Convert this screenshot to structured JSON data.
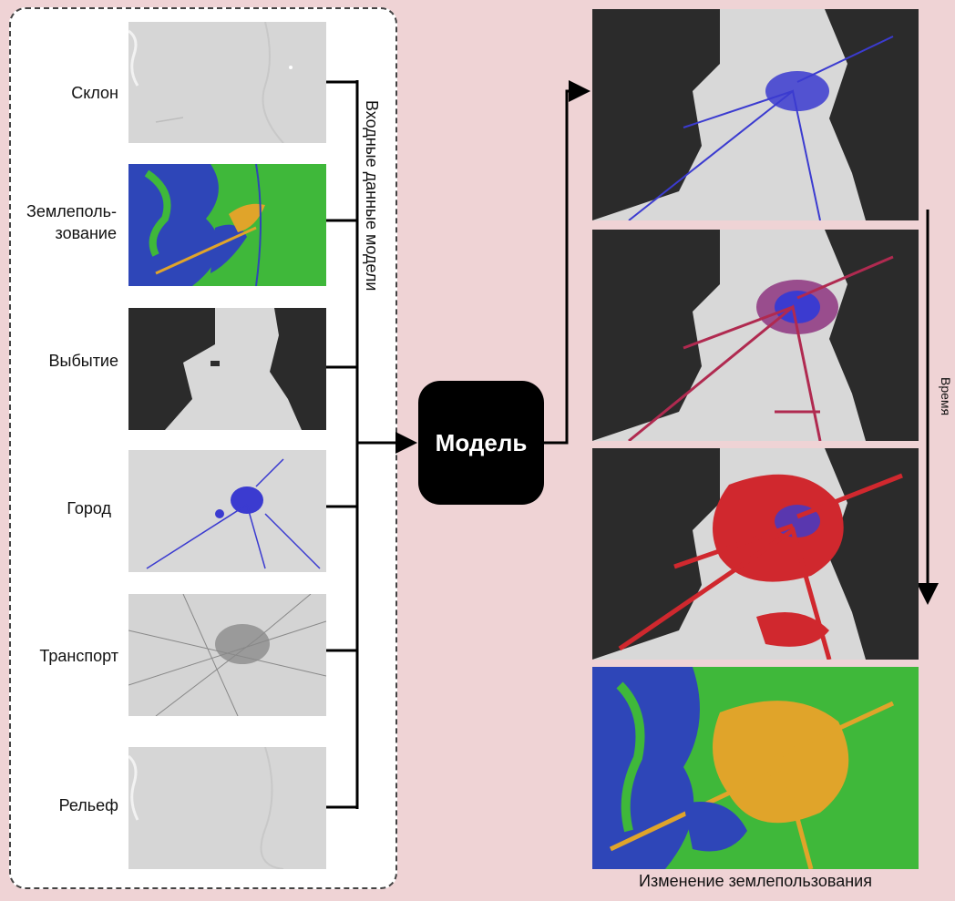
{
  "inputs": {
    "layers": [
      {
        "label": "Склон",
        "kind": "slope"
      },
      {
        "label": "Землеполь-\nзование",
        "kind": "landuse"
      },
      {
        "label": "Выбытие",
        "kind": "exclusion"
      },
      {
        "label": "Город",
        "kind": "urban"
      },
      {
        "label": "Транспорт",
        "kind": "transport"
      },
      {
        "label": "Рельеф",
        "kind": "hillshade"
      }
    ],
    "group_label": "Входные данные модели"
  },
  "model": {
    "label": "Модель"
  },
  "outputs": {
    "time_label": "Время",
    "caption": "Изменение землепользования",
    "panels": [
      "growth-step-1",
      "growth-step-2",
      "growth-step-3",
      "landuse-result"
    ]
  },
  "colors": {
    "background": "#efd3d5",
    "urban_blue": "#3b3bd0",
    "growth_red": "#d0282e",
    "landuse_green": "#3fb83a",
    "landuse_blue": "#2e46b8",
    "landuse_orange": "#e0a42a",
    "dark_terrain": "#2b2b2b",
    "light_terrain": "#d8d8d8"
  }
}
